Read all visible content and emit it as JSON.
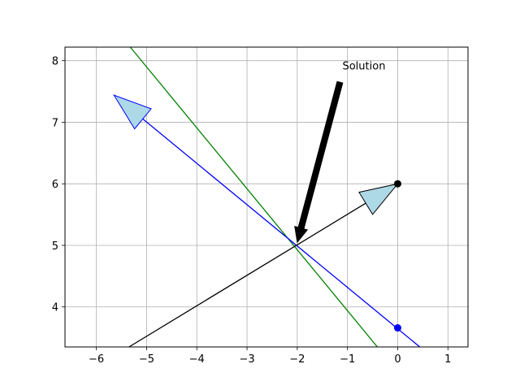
{
  "chart_data": {
    "type": "line",
    "title": "",
    "xlabel": "",
    "ylabel": "",
    "xlim": [
      -6.625,
      1.4
    ],
    "ylim": [
      3.35,
      8.22
    ],
    "xticks": [
      -6,
      -5,
      -4,
      -3,
      -2,
      -1,
      0,
      1
    ],
    "yticks": [
      4,
      5,
      6,
      7,
      8
    ],
    "xtick_labels": [
      "−6",
      "−5",
      "−4",
      "−3",
      "−2",
      "−1",
      "0",
      "1"
    ],
    "ytick_labels": [
      "4",
      "5",
      "6",
      "7",
      "8"
    ],
    "grid": true,
    "lines": [
      {
        "color": "#008000",
        "x": [
          -5.325,
          -0.405
        ],
        "y": [
          8.22,
          3.35
        ]
      },
      {
        "color": "#0000ff",
        "x": [
          -5.65,
          0.44
        ],
        "y": [
          7.44,
          3.35
        ]
      },
      {
        "color": "#000000",
        "x": [
          -5.35,
          0
        ],
        "y": [
          3.35,
          6.0
        ]
      }
    ],
    "points": [
      {
        "x": 0,
        "y": 6.0,
        "color": "#000000"
      },
      {
        "x": 0,
        "y": 3.66,
        "color": "#0000ff"
      }
    ],
    "arrows": [
      {
        "from": [
          -2,
          5
        ],
        "to": [
          -5.65,
          7.44
        ],
        "face": "#add8e6",
        "edge": "#0000ff"
      },
      {
        "from": [
          -2,
          5
        ],
        "to": [
          0,
          6.0
        ],
        "face": "#add8e6",
        "edge": "#000000"
      }
    ],
    "annotation": {
      "text": "Solution",
      "text_at": [
        -1.1,
        7.86
      ],
      "xy": [
        -2.0,
        5.05
      ]
    }
  }
}
